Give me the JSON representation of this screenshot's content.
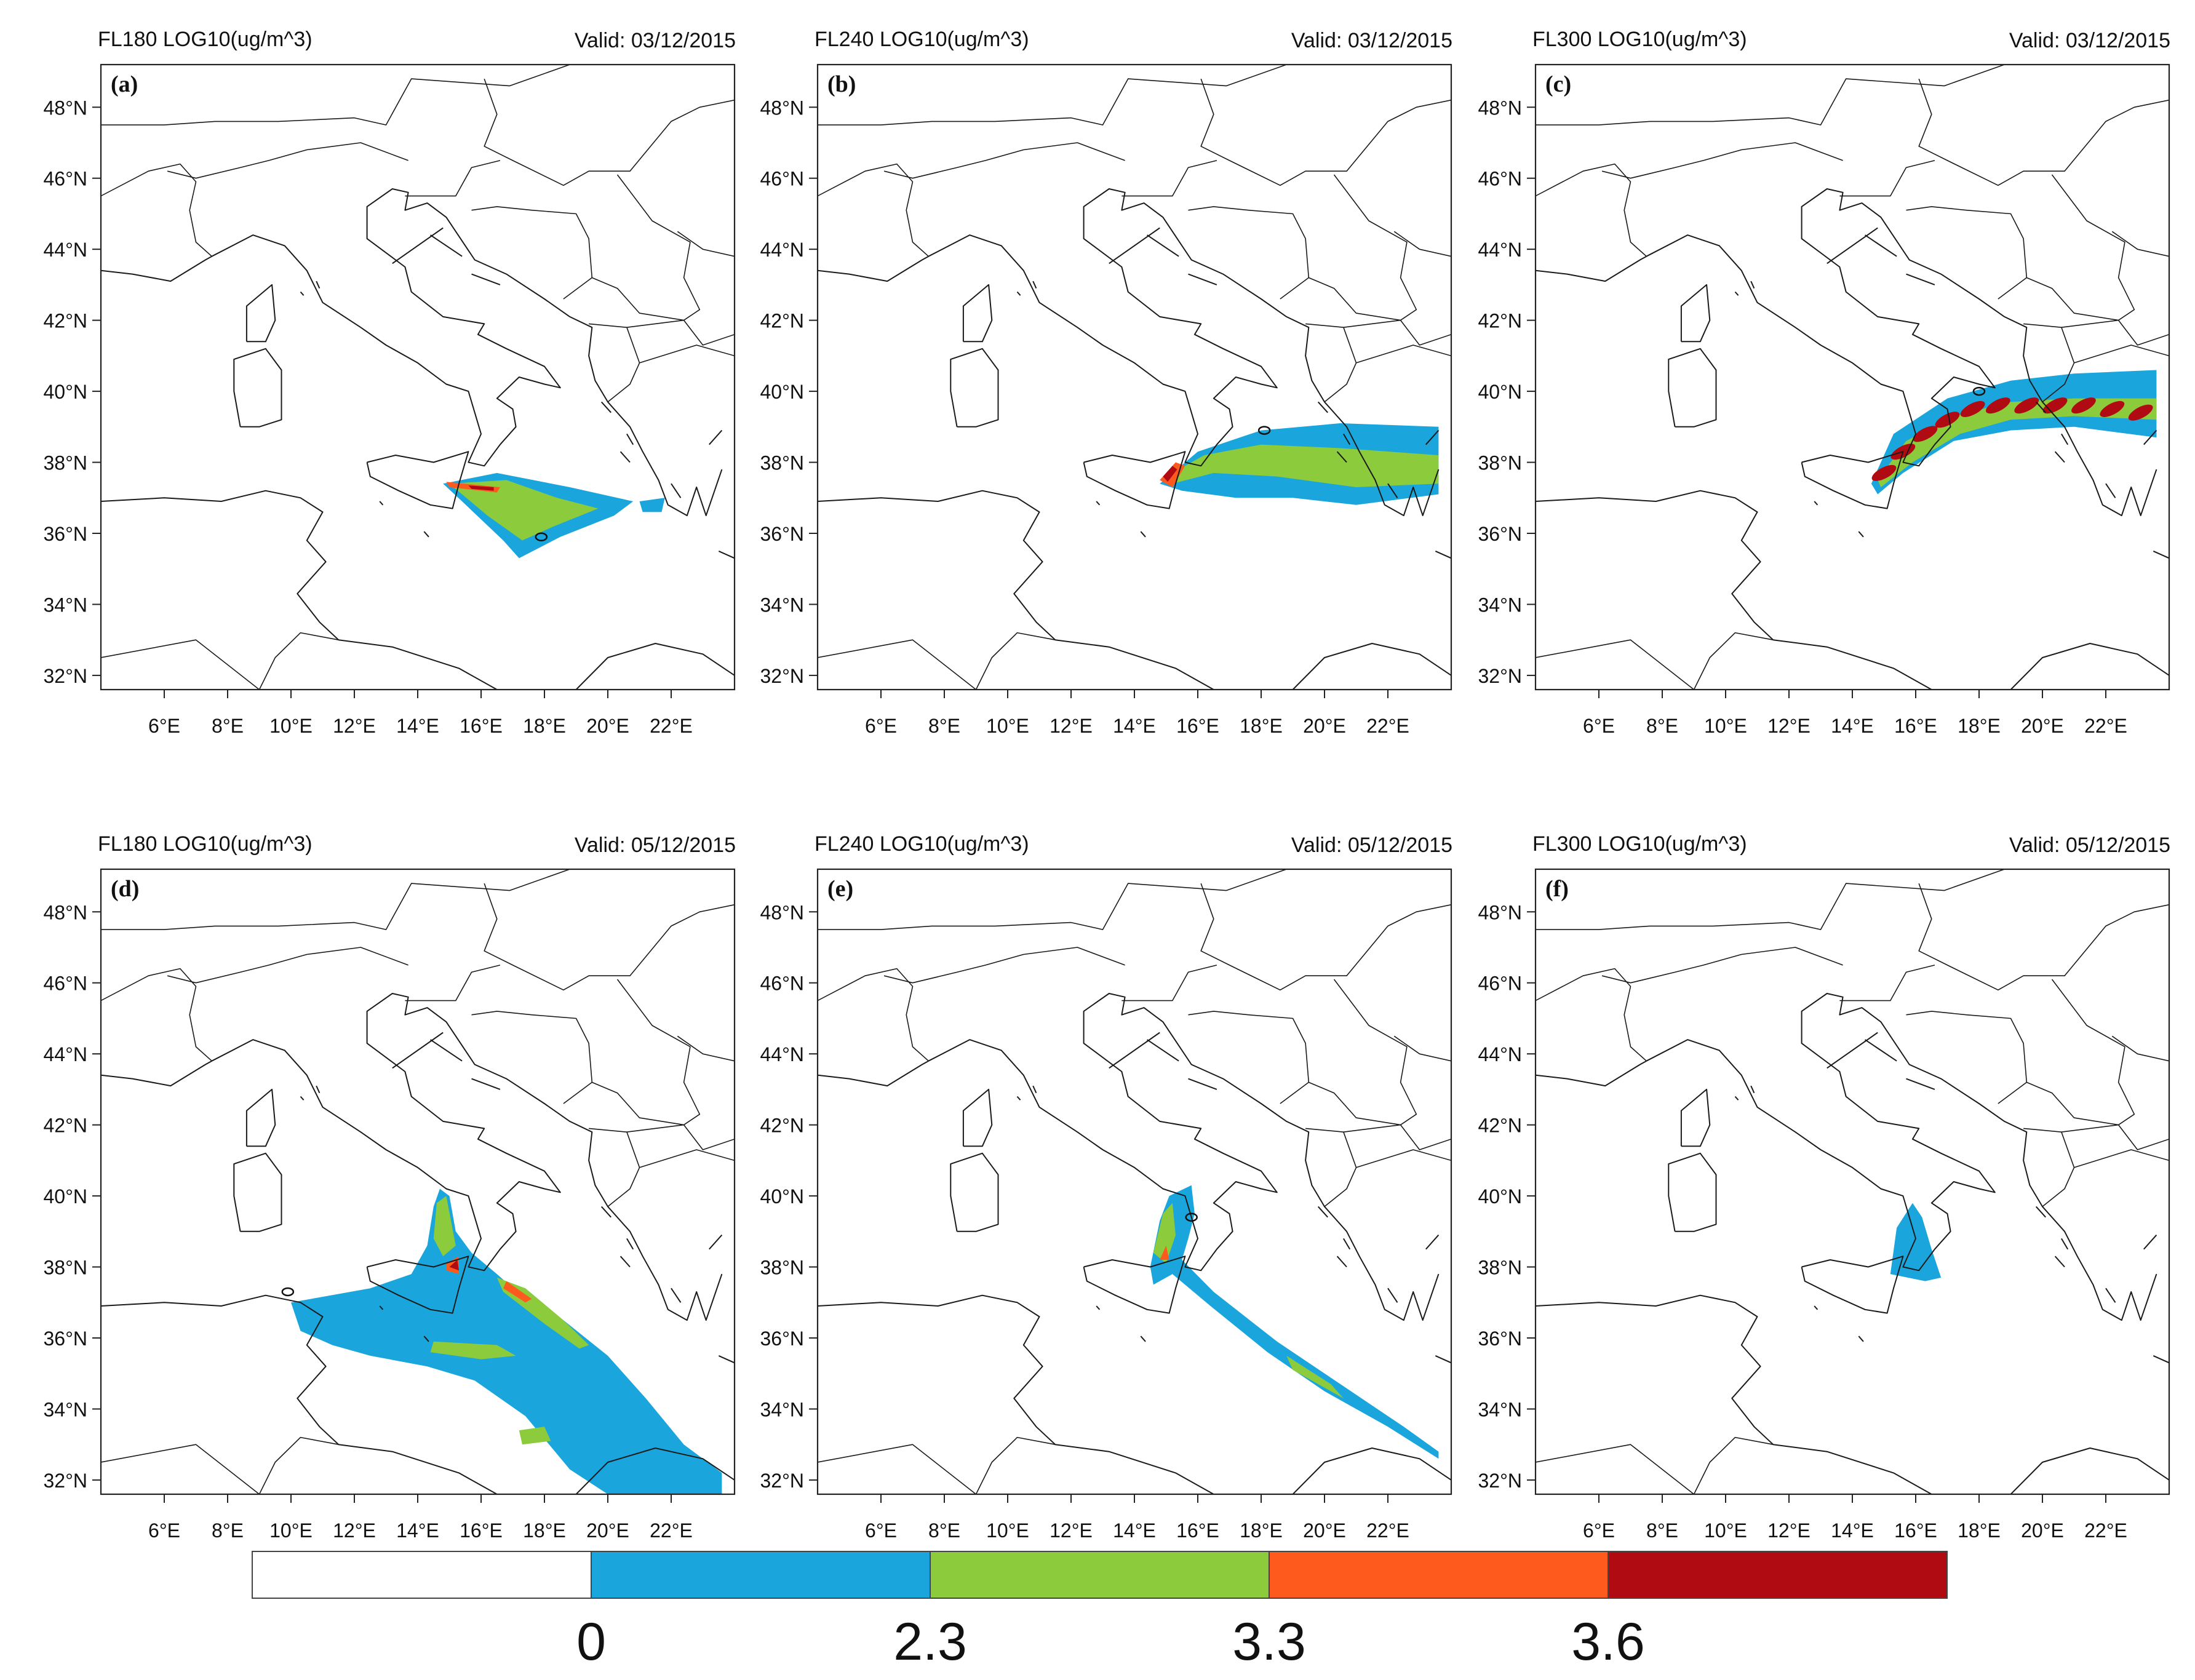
{
  "figure": {
    "panels": [
      {
        "id": "a",
        "label": "(a)",
        "title": "FL180 LOG10(ug/m^3)",
        "valid": "Valid: 03/12/2015",
        "level": "FL180",
        "date": "03/12/2015"
      },
      {
        "id": "b",
        "label": "(b)",
        "title": "FL240 LOG10(ug/m^3)",
        "valid": "Valid: 03/12/2015",
        "level": "FL240",
        "date": "03/12/2015"
      },
      {
        "id": "c",
        "label": "(c)",
        "title": "FL300 LOG10(ug/m^3)",
        "valid": "Valid: 03/12/2015",
        "level": "FL300",
        "date": "03/12/2015"
      },
      {
        "id": "d",
        "label": "(d)",
        "title": "FL180 LOG10(ug/m^3)",
        "valid": "Valid: 05/12/2015",
        "level": "FL180",
        "date": "05/12/2015"
      },
      {
        "id": "e",
        "label": "(e)",
        "title": "FL240 LOG10(ug/m^3)",
        "valid": "Valid: 05/12/2015",
        "level": "FL240",
        "date": "05/12/2015"
      },
      {
        "id": "f",
        "label": "(f)",
        "title": "FL300 LOG10(ug/m^3)",
        "valid": "Valid: 05/12/2015",
        "level": "FL300",
        "date": "05/12/2015"
      }
    ],
    "lat_ticks": [
      "48°N",
      "46°N",
      "44°N",
      "42°N",
      "40°N",
      "38°N",
      "36°N",
      "34°N",
      "32°N"
    ],
    "lon_ticks": [
      "6°E",
      "8°E",
      "10°E",
      "12°E",
      "14°E",
      "16°E",
      "18°E",
      "20°E",
      "22°E"
    ],
    "colorbar": {
      "labels": [
        "0",
        "2.3",
        "3.3",
        "3.6"
      ],
      "colors": [
        "#ffffff",
        "#1aa6dc",
        "#8ccb3c",
        "#ff5a1e",
        "#b00a12"
      ]
    }
  },
  "chart_data": {
    "type": "map",
    "variable": "LOG10(ug/m^3)",
    "extent": {
      "lon": [
        4,
        24
      ],
      "lat": [
        31.6,
        49.2
      ]
    },
    "levels": [
      0,
      2.3,
      3.3,
      3.6
    ]
  }
}
